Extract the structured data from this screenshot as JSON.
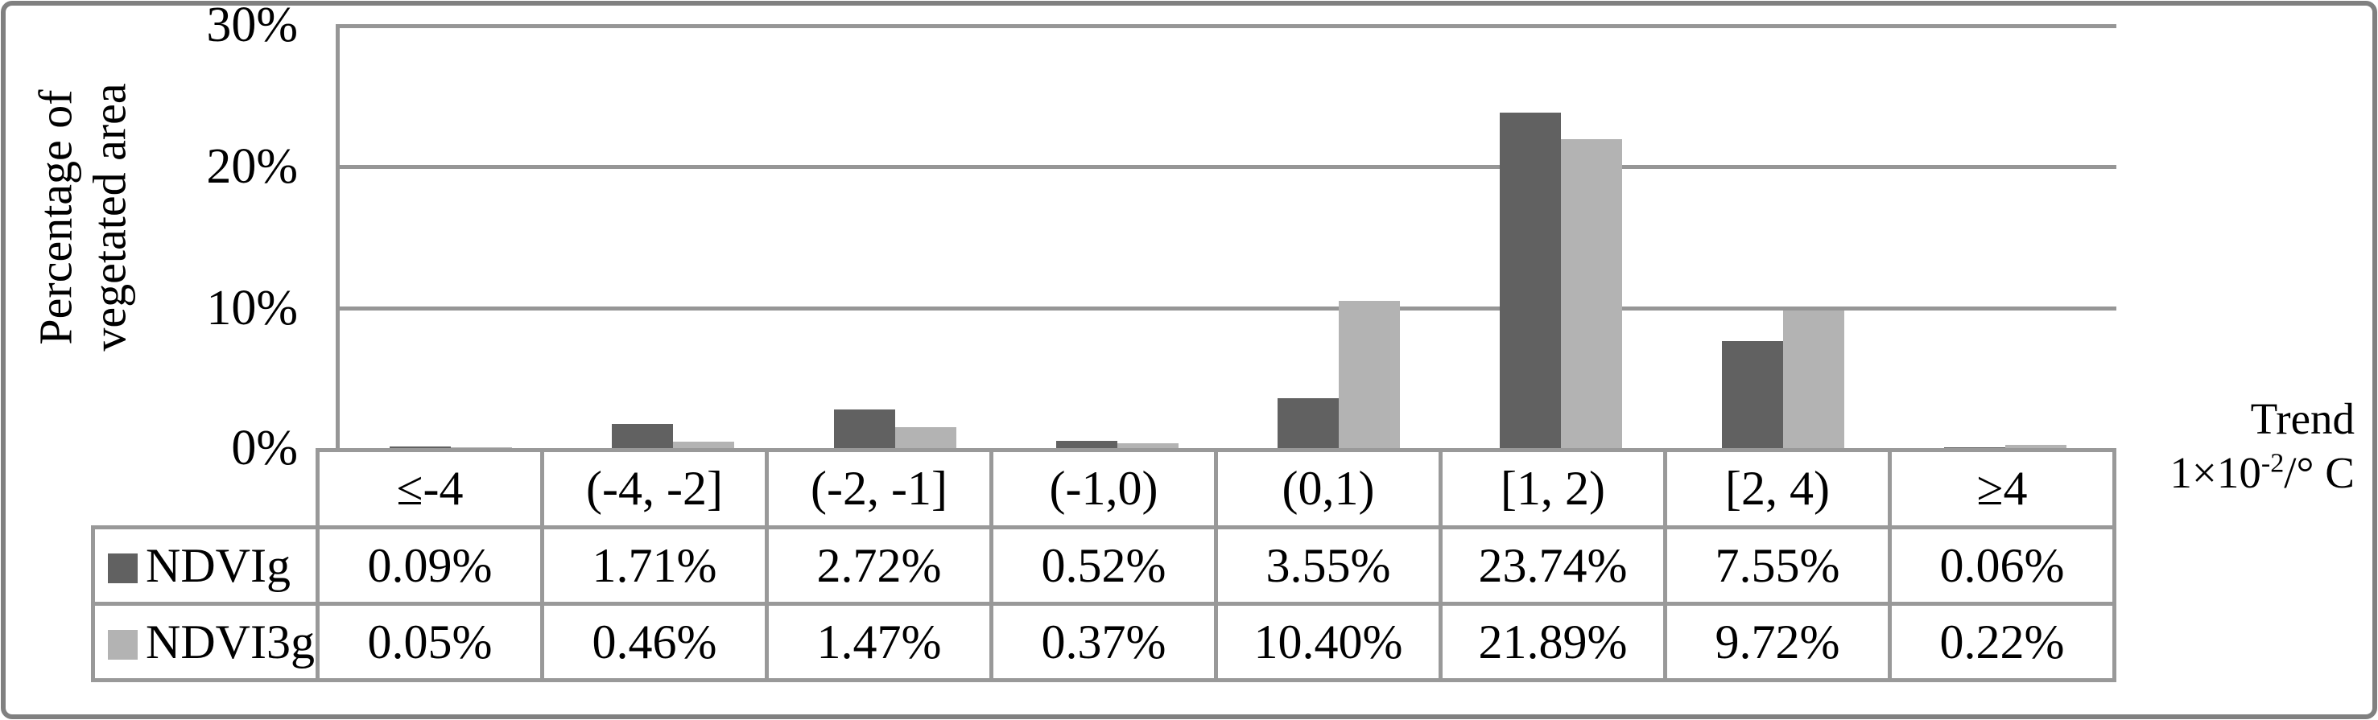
{
  "figure": {
    "ylabel_line1": "Percentage of",
    "ylabel_line2": "vegetated area",
    "yticks": [
      "30%",
      "20%",
      "10%",
      "0%"
    ],
    "trend_label": "Trend",
    "unit_prefix": "1×10",
    "unit_exponent": "-2",
    "unit_suffix": "/° C"
  },
  "chart_data": {
    "type": "bar",
    "title": "",
    "xlabel": "Trend 1×10⁻²/° C",
    "ylabel": "Percentage of vegetated area",
    "ylim": [
      0,
      30
    ],
    "ytick_labels": [
      "0%",
      "10%",
      "20%",
      "30%"
    ],
    "grid": true,
    "legend_position": "table-left",
    "categories": [
      "≤-4",
      "(-4, -2]",
      "(-2, -1]",
      "(-1,0)",
      "(0,1)",
      "[1, 2)",
      "[2, 4)",
      "≥4"
    ],
    "series": [
      {
        "name": "NDVIg",
        "color": "#616161",
        "values": [
          0.09,
          1.71,
          2.72,
          0.52,
          3.55,
          23.74,
          7.55,
          0.06
        ]
      },
      {
        "name": "NDVI3g",
        "color": "#b3b3b3",
        "values": [
          0.05,
          0.46,
          1.47,
          0.37,
          10.4,
          21.89,
          9.72,
          0.22
        ]
      }
    ]
  },
  "table": {
    "categories": [
      "≤-4",
      "(-4, -2]",
      "(-2, -1]",
      "(-1,0)",
      "(0,1)",
      "[1, 2)",
      "[2, 4)",
      "≥4"
    ],
    "rows": [
      {
        "label": "NDVIg",
        "swatch_color": "#616161",
        "values": [
          "0.09%",
          "1.71%",
          "2.72%",
          "0.52%",
          "3.55%",
          "23.74%",
          "7.55%",
          "0.06%"
        ]
      },
      {
        "label": "NDVI3g",
        "swatch_color": "#b3b3b3",
        "values": [
          "0.05%",
          "0.46%",
          "1.47%",
          "0.37%",
          "10.40%",
          "21.89%",
          "9.72%",
          "0.22%"
        ]
      }
    ]
  },
  "colors": {
    "bar_dark": "#616161",
    "bar_light": "#b3b3b3",
    "gridline": "#969696",
    "table_border": "#999999",
    "outer_border": "#808080"
  }
}
